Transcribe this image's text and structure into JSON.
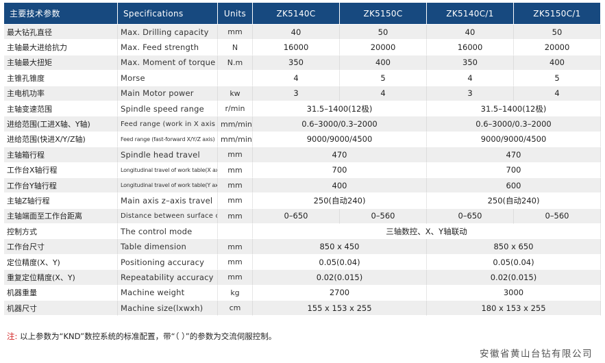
{
  "header": {
    "param": "主要技术参数",
    "spec": "Specifications",
    "units": "Units",
    "models": [
      "ZK5140C",
      "ZK5150C",
      "ZK5140C/1",
      "ZK5150C/1"
    ]
  },
  "rows": [
    {
      "param": "最大钻孔直径",
      "spec": "Max. Drilling capacity",
      "unit": "mm",
      "values": [
        "40",
        "50",
        "40",
        "50"
      ]
    },
    {
      "param": "主轴最大进给抗力",
      "spec": "Max. Feed strength",
      "unit": "N",
      "values": [
        "16000",
        "20000",
        "16000",
        "20000"
      ]
    },
    {
      "param": "主轴最大扭矩",
      "spec": "Max. Moment of torque",
      "unit": "N.m",
      "values": [
        "350",
        "400",
        "350",
        "400"
      ]
    },
    {
      "param": "主锥孔锥度",
      "spec": "Morse",
      "unit": "",
      "values": [
        "4",
        "5",
        "4",
        "5"
      ]
    },
    {
      "param": "主电机功率",
      "spec": "Main Motor power",
      "unit": "kw",
      "values": [
        "3",
        "4",
        "3",
        "4"
      ]
    },
    {
      "param": "主轴变速范围",
      "spec": "Spindle speed range",
      "unit": "r/min",
      "pair": [
        "31.5–1400(12极)",
        "31.5–1400(12极)"
      ]
    },
    {
      "param": "进给范围(工进X轴、Y轴)",
      "spec": "Feed range (work in X axis and Y axis)",
      "unit": "mm/min",
      "pair": [
        "0.6–3000/0.3–2000",
        "0.6–3000/0.3–2000"
      ]
    },
    {
      "param": "进给范围(快进X/Y/Z轴)",
      "spec": "Feed range (fast-forward X/Y/Z axis)",
      "unit": "mm/min",
      "pair": [
        "9000/9000/4500",
        "9000/9000/4500"
      ]
    },
    {
      "param": "主轴箱行程",
      "spec": "Spindle head travel",
      "unit": "mm",
      "pair": [
        "470",
        "470"
      ]
    },
    {
      "param": "工作台X轴行程",
      "spec": "Longitudinal travel of work table(X axle)",
      "unit": "mm",
      "pair": [
        "700",
        "700"
      ]
    },
    {
      "param": "工作台Y轴行程",
      "spec": "Longitudinal travel of work table(Y axle)",
      "unit": "mm",
      "pair": [
        "400",
        "600"
      ]
    },
    {
      "param": "主轴Z轴行程",
      "spec": "Main axis z–axis travel",
      "unit": "mm",
      "pair": [
        "250(自动240)",
        "250(自动240)"
      ]
    },
    {
      "param": "主轴端面至工作台距离",
      "spec": "Distance between surface of main spindle ang working table",
      "unit": "mm",
      "values": [
        "0–650",
        "0–560",
        "0–650",
        "0–560"
      ]
    },
    {
      "param": "控制方式",
      "spec": "The control mode",
      "unit": "",
      "full": "三轴数控、X、Y轴联动"
    },
    {
      "param": "工作台尺寸",
      "spec": "Table dimension",
      "unit": "mm",
      "pair": [
        "850 x 450",
        "850 x 650"
      ]
    },
    {
      "param": "定位精度(X、Y)",
      "spec": "Positioning accuracy",
      "unit": "mm",
      "pair": [
        "0.05(0.04)",
        "0.05(0.04)"
      ]
    },
    {
      "param": "重复定位精度(X、Y)",
      "spec": "Repeatability accuracy",
      "unit": "mm",
      "pair": [
        "0.02(0.015)",
        "0.02(0.015)"
      ]
    },
    {
      "param": "机器重量",
      "spec": "Machine weight",
      "unit": "kg",
      "pair": [
        "2700",
        "3000"
      ]
    },
    {
      "param": "机器尺寸",
      "spec": "Machine size(lxwxh)",
      "unit": "cm",
      "pair": [
        "155 x 153 x 255",
        "180 x 153 x 255"
      ]
    }
  ],
  "footnote": {
    "mark": "注:",
    "text": "以上参数为“KND”数控系统的标准配置，带“（ ）”的参数为交流伺服控制。"
  },
  "company": "安徽省黄山台钻有限公司",
  "colors": {
    "header_bg": "#17497f",
    "stripe": "#eeeeee",
    "note_mark": "#d21f1f"
  }
}
